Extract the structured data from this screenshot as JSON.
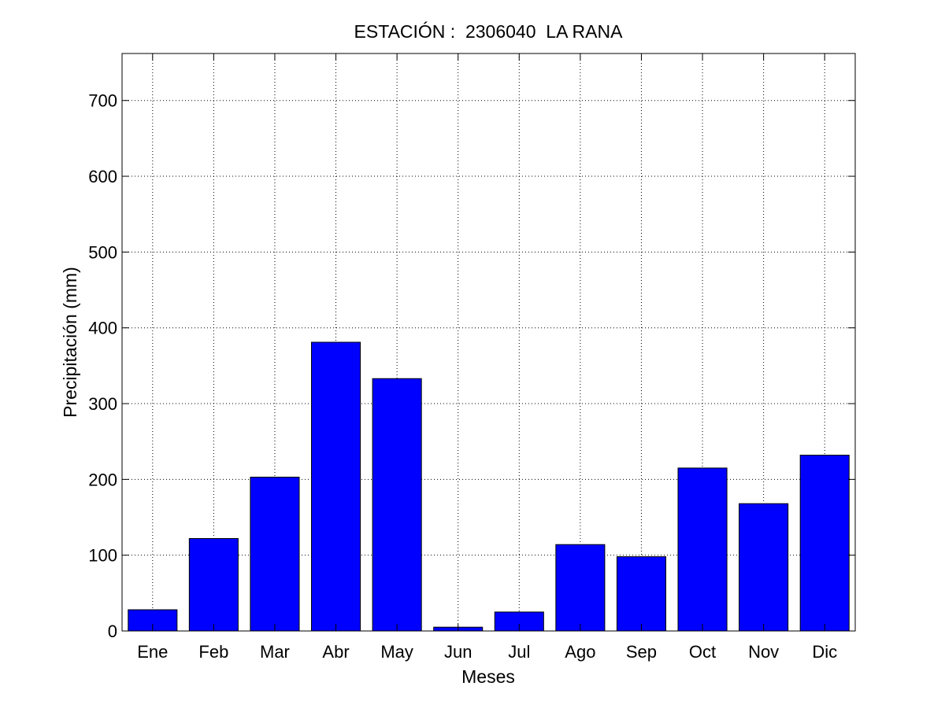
{
  "chart_data": {
    "type": "bar",
    "title": "ESTACIÓN :  2306040  LA RANA",
    "xlabel": "Meses",
    "ylabel": "Precipitación (mm)",
    "categories": [
      "Ene",
      "Feb",
      "Mar",
      "Abr",
      "May",
      "Jun",
      "Jul",
      "Ago",
      "Sep",
      "Oct",
      "Nov",
      "Dic"
    ],
    "values": [
      28,
      122,
      203,
      381,
      333,
      5,
      25,
      114,
      98,
      215,
      168,
      232
    ],
    "ylim": [
      0,
      762
    ],
    "yticks": [
      0,
      100,
      200,
      300,
      400,
      500,
      600,
      700
    ],
    "grid": true,
    "bar_color": "#0000ff",
    "edge_color": "#000000"
  }
}
